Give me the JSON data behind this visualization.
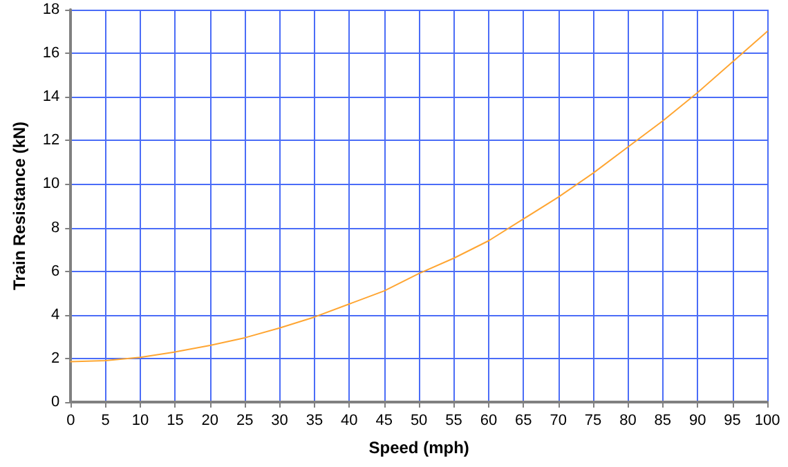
{
  "chart_data": {
    "type": "line",
    "xlabel": "Speed (mph)",
    "ylabel": "Train Resistance (kN)",
    "x": [
      0,
      5,
      10,
      15,
      20,
      25,
      30,
      35,
      40,
      45,
      50,
      55,
      60,
      65,
      70,
      75,
      80,
      85,
      90,
      95,
      100
    ],
    "series": [
      {
        "color": "#ffa531",
        "values": [
          1.85,
          1.9,
          2.05,
          2.3,
          2.6,
          2.95,
          3.4,
          3.9,
          4.5,
          5.1,
          5.9,
          6.6,
          7.4,
          8.4,
          9.4,
          10.5,
          11.7,
          12.9,
          14.2,
          15.6,
          17.0
        ]
      }
    ],
    "xlim": [
      0,
      100
    ],
    "xticks": [
      0,
      5,
      10,
      15,
      20,
      25,
      30,
      35,
      40,
      45,
      50,
      55,
      60,
      65,
      70,
      75,
      80,
      85,
      90,
      95,
      100
    ],
    "ylim": [
      0,
      18
    ],
    "yticks": [
      0,
      2,
      4,
      6,
      8,
      10,
      12,
      14,
      16,
      18
    ],
    "grid": true,
    "marker": "none",
    "line_style": "solid"
  }
}
